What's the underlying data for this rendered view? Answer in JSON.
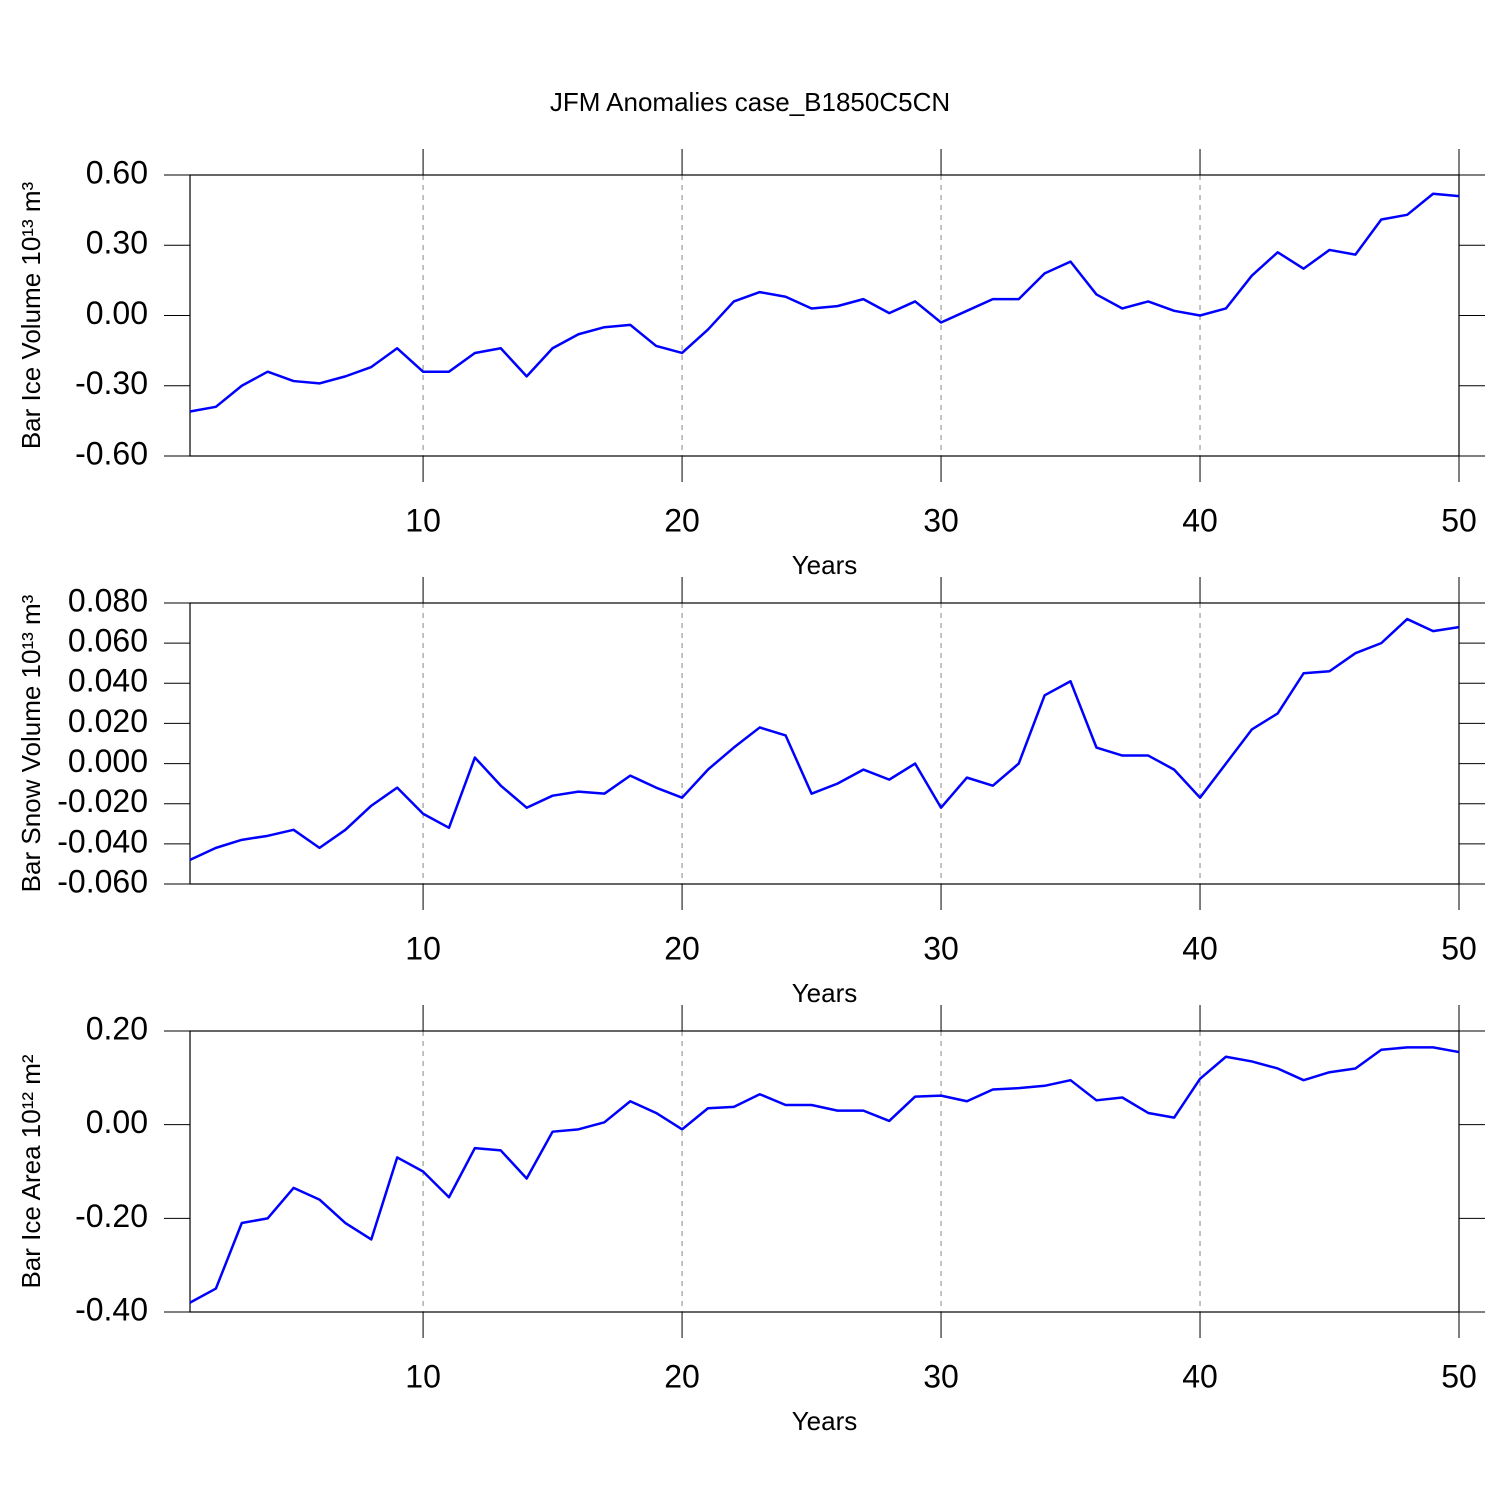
{
  "chart_data": [
    {
      "type": "line",
      "title": "JFM Anomalies case_B1850C5CN",
      "xlabel": "Years",
      "ylabel": "Bar Ice Volume 10¹³ m³",
      "x": [
        1,
        2,
        3,
        4,
        5,
        6,
        7,
        8,
        9,
        10,
        11,
        12,
        13,
        14,
        15,
        16,
        17,
        18,
        19,
        20,
        21,
        22,
        23,
        24,
        25,
        26,
        27,
        28,
        29,
        30,
        31,
        32,
        33,
        34,
        35,
        36,
        37,
        38,
        39,
        40,
        41,
        42,
        43,
        44,
        45,
        46,
        47,
        48,
        49,
        50
      ],
      "series": [
        {
          "color": "#0000ff",
          "values": [
            -0.41,
            -0.39,
            -0.3,
            -0.24,
            -0.28,
            -0.29,
            -0.26,
            -0.22,
            -0.14,
            -0.24,
            -0.24,
            -0.16,
            -0.14,
            -0.26,
            -0.14,
            -0.08,
            -0.05,
            -0.04,
            -0.13,
            -0.16,
            -0.06,
            0.06,
            0.1,
            0.08,
            0.03,
            0.04,
            0.07,
            0.01,
            0.06,
            -0.03,
            0.02,
            0.07,
            0.07,
            0.18,
            0.23,
            0.09,
            0.03,
            0.06,
            0.02,
            0.0,
            0.03,
            0.17,
            0.27,
            0.2,
            0.28,
            0.26,
            0.41,
            0.43,
            0.52,
            0.51
          ]
        }
      ],
      "xlim": [
        1,
        50
      ],
      "xticks": [
        10,
        20,
        30,
        40,
        50
      ],
      "ylim": [
        -0.6,
        0.6
      ],
      "yticks": [
        {
          "value": 0.6,
          "label": "0.60"
        },
        {
          "value": 0.3,
          "label": "0.30"
        },
        {
          "value": 0,
          "label": "0.00"
        },
        {
          "value": -0.3,
          "label": "-0.30"
        },
        {
          "value": -0.6,
          "label": "-0.60"
        }
      ],
      "grid": true
    },
    {
      "type": "line",
      "xlabel": "Years",
      "ylabel": "Bar Snow Volume 10¹³ m³",
      "x": [
        1,
        2,
        3,
        4,
        5,
        6,
        7,
        8,
        9,
        10,
        11,
        12,
        13,
        14,
        15,
        16,
        17,
        18,
        19,
        20,
        21,
        22,
        23,
        24,
        25,
        26,
        27,
        28,
        29,
        30,
        31,
        32,
        33,
        34,
        35,
        36,
        37,
        38,
        39,
        40,
        41,
        42,
        43,
        44,
        45,
        46,
        47,
        48,
        49,
        50
      ],
      "series": [
        {
          "color": "#0000ff",
          "values": [
            -0.048,
            -0.042,
            -0.038,
            -0.036,
            -0.033,
            -0.042,
            -0.033,
            -0.021,
            -0.012,
            -0.025,
            -0.032,
            0.003,
            -0.011,
            -0.022,
            -0.016,
            -0.014,
            -0.015,
            -0.006,
            -0.012,
            -0.017,
            -0.003,
            0.008,
            0.018,
            0.014,
            -0.015,
            -0.01,
            -0.003,
            -0.008,
            0.0,
            -0.022,
            -0.007,
            -0.011,
            0.0,
            0.034,
            0.041,
            0.008,
            0.004,
            0.004,
            -0.003,
            -0.017,
            0.0,
            0.017,
            0.025,
            0.045,
            0.046,
            0.055,
            0.06,
            0.072,
            0.066,
            0.068
          ]
        }
      ],
      "xlim": [
        1,
        50
      ],
      "xticks": [
        10,
        20,
        30,
        40,
        50
      ],
      "ylim": [
        -0.06,
        0.08
      ],
      "yticks": [
        {
          "value": 0.08,
          "label": "0.080"
        },
        {
          "value": 0.06,
          "label": "0.060"
        },
        {
          "value": 0.04,
          "label": "0.040"
        },
        {
          "value": 0.02,
          "label": "0.020"
        },
        {
          "value": 0,
          "label": "0.000"
        },
        {
          "value": -0.02,
          "label": "-0.020"
        },
        {
          "value": -0.04,
          "label": "-0.040"
        },
        {
          "value": -0.06,
          "label": "-0.060"
        }
      ],
      "grid": true
    },
    {
      "type": "line",
      "xlabel": "Years",
      "ylabel": "Bar Ice Area 10¹² m²",
      "x": [
        1,
        2,
        3,
        4,
        5,
        6,
        7,
        8,
        9,
        10,
        11,
        12,
        13,
        14,
        15,
        16,
        17,
        18,
        19,
        20,
        21,
        22,
        23,
        24,
        25,
        26,
        27,
        28,
        29,
        30,
        31,
        32,
        33,
        34,
        35,
        36,
        37,
        38,
        39,
        40,
        41,
        42,
        43,
        44,
        45,
        46,
        47,
        48,
        49,
        50
      ],
      "series": [
        {
          "color": "#0000ff",
          "values": [
            -0.38,
            -0.35,
            -0.21,
            -0.2,
            -0.135,
            -0.16,
            -0.21,
            -0.245,
            -0.07,
            -0.1,
            -0.155,
            -0.05,
            -0.055,
            -0.115,
            -0.015,
            -0.01,
            0.005,
            0.05,
            0.025,
            -0.01,
            0.035,
            0.038,
            0.065,
            0.042,
            0.042,
            0.03,
            0.03,
            0.008,
            0.06,
            0.062,
            0.05,
            0.075,
            0.078,
            0.083,
            0.095,
            0.052,
            0.058,
            0.025,
            0.015,
            0.098,
            0.145,
            0.135,
            0.12,
            0.095,
            0.112,
            0.12,
            0.16,
            0.165,
            0.165,
            0.155
          ]
        }
      ],
      "xlim": [
        1,
        50
      ],
      "xticks": [
        10,
        20,
        30,
        40,
        50
      ],
      "ylim": [
        -0.4,
        0.2
      ],
      "yticks": [
        {
          "value": 0.2,
          "label": "0.20"
        },
        {
          "value": 0,
          "label": "0.00"
        },
        {
          "value": -0.2,
          "label": "-0.20"
        },
        {
          "value": -0.4,
          "label": "-0.40"
        }
      ],
      "grid": true
    }
  ]
}
